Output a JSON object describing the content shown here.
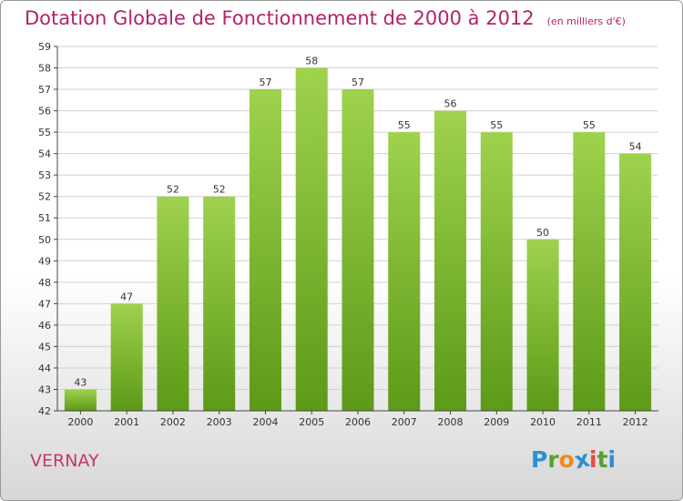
{
  "title": "Dotation Globale de Fonctionnement de 2000 à 2012",
  "subtitle": "(en milliers d'€)",
  "entity": "VERNAY",
  "logo": {
    "letters": [
      "P",
      "r",
      "o",
      "x",
      "i",
      "t",
      "i"
    ],
    "colors": [
      "#2b8fd6",
      "#5aa02c",
      "#f08a1d",
      "#2b8fd6",
      "#e64b3c",
      "#5aa02c",
      "#2b8fd6"
    ]
  },
  "colors": {
    "bar_top": "#9fd24e",
    "bar_bottom": "#5c9a18",
    "title": "#b4226a",
    "grid": "#d0d0d0"
  },
  "chart_data": {
    "type": "bar",
    "title": "Dotation Globale de Fonctionnement de 2000 à 2012",
    "subtitle": "(en milliers d'€)",
    "categories": [
      "2000",
      "2001",
      "2002",
      "2003",
      "2004",
      "2005",
      "2006",
      "2007",
      "2008",
      "2009",
      "2010",
      "2011",
      "2012"
    ],
    "values": [
      43,
      47,
      52,
      52,
      57,
      58,
      57,
      55,
      56,
      55,
      50,
      55,
      54
    ],
    "ylim": [
      42,
      59
    ],
    "yticks": [
      42,
      43,
      44,
      45,
      46,
      47,
      48,
      49,
      50,
      51,
      52,
      53,
      54,
      55,
      56,
      57,
      58,
      59
    ],
    "xlabel": "",
    "ylabel": "",
    "grid": true,
    "data_labels": true
  }
}
